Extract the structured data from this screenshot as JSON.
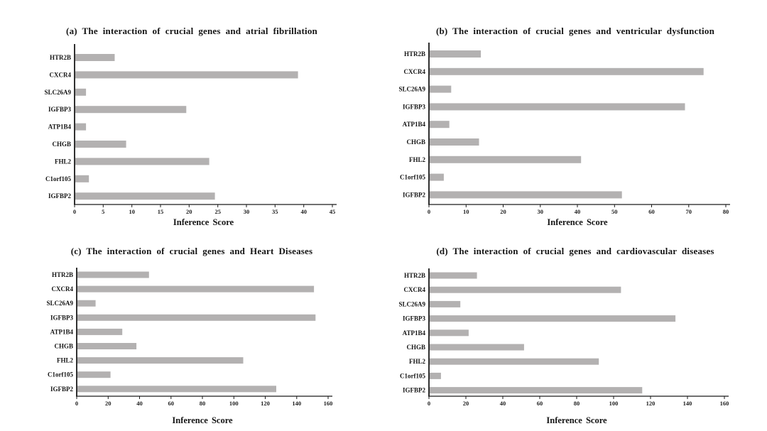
{
  "figure": {
    "background_color": "#ffffff",
    "bar_color": "#b3b1b1",
    "axis_color": "#1a1a1a",
    "text_color": "#151515"
  },
  "chart_data": [
    {
      "panel": "a",
      "type": "bar",
      "orientation": "horizontal",
      "title": "(a) The interaction of crucial genes and atrial fibrillation",
      "categories": [
        "HTR2B",
        "CXCR4",
        "SLC26A9",
        "IGFBP3",
        "ATP1B4",
        "CHGB",
        "FHL2",
        "C1orf105",
        "IGFBP2"
      ],
      "values": [
        7,
        39,
        2,
        19.5,
        2,
        9,
        23.5,
        2.5,
        24.5
      ],
      "xlabel": "Inference Score",
      "xlim": [
        0,
        45
      ],
      "xticks": [
        0,
        5,
        10,
        15,
        20,
        25,
        30,
        35,
        40,
        45
      ],
      "grid": false,
      "legend": "none"
    },
    {
      "panel": "b",
      "type": "bar",
      "orientation": "horizontal",
      "title": "(b) The interaction of crucial genes and ventricular dysfunction",
      "categories": [
        "HTR2B",
        "CXCR4",
        "SLC26A9",
        "IGFBP3",
        "ATP1B4",
        "CHGB",
        "FHL2",
        "C1orf105",
        "IGFBP2"
      ],
      "values": [
        14,
        74,
        6,
        69,
        5.5,
        13.5,
        41,
        4,
        52
      ],
      "xlabel": "Inference Score",
      "xlim": [
        0,
        80
      ],
      "xticks": [
        0,
        10,
        20,
        30,
        40,
        50,
        60,
        70,
        80
      ],
      "grid": false,
      "legend": "none"
    },
    {
      "panel": "c",
      "type": "bar",
      "orientation": "horizontal",
      "title": "(c) The interaction of crucial genes and Heart Diseases",
      "categories": [
        "HTR2B",
        "CXCR4",
        "SLC26A9",
        "IGFBP3",
        "ATP1B4",
        "CHGB",
        "FHL2",
        "C1orf105",
        "IGFBP2"
      ],
      "values": [
        46,
        151,
        12,
        152,
        29,
        38,
        106,
        21.5,
        127
      ],
      "xlabel": "Inference Score",
      "xlim": [
        0,
        160
      ],
      "xticks": [
        0,
        20,
        40,
        60,
        80,
        100,
        120,
        140,
        160
      ],
      "grid": false,
      "legend": "none"
    },
    {
      "panel": "d",
      "type": "bar",
      "orientation": "horizontal",
      "title": "(d) The interaction of crucial genes and cardiovascular diseases",
      "categories": [
        "HTR2B",
        "CXCR4",
        "SLC26A9",
        "IGFBP3",
        "ATP1B4",
        "CHGB",
        "FHL2",
        "C1orf105",
        "IGFBP2"
      ],
      "values": [
        26,
        104,
        17,
        133.5,
        21.5,
        51.5,
        92,
        6.5,
        115.5
      ],
      "xlabel": "Inference Score",
      "xlim": [
        0,
        160
      ],
      "xticks": [
        0,
        20,
        40,
        60,
        80,
        100,
        120,
        140,
        160
      ],
      "grid": false,
      "legend": "none"
    }
  ]
}
